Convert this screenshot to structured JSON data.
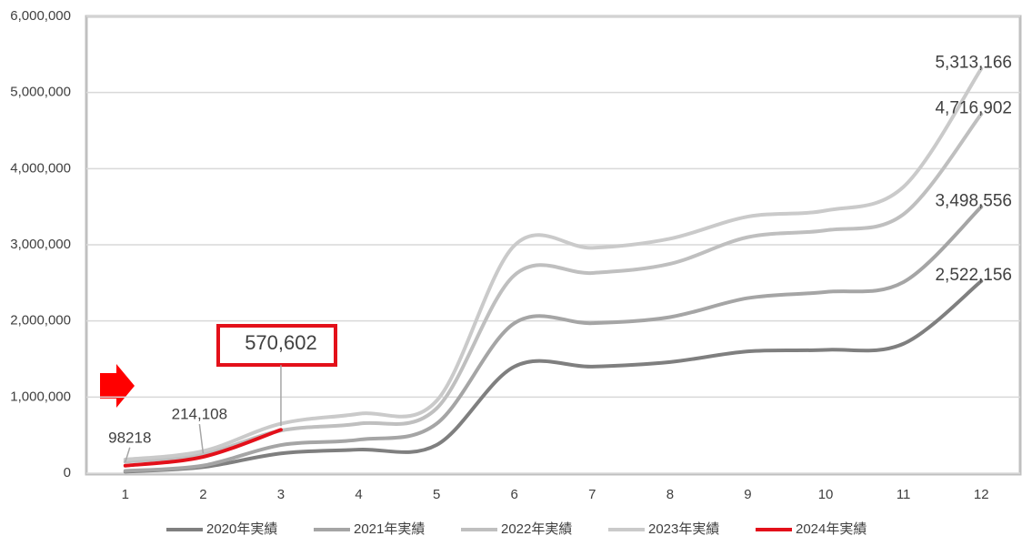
{
  "chart_data": {
    "type": "line",
    "categories": [
      "1",
      "2",
      "3",
      "4",
      "5",
      "6",
      "7",
      "8",
      "9",
      "10",
      "11",
      "12"
    ],
    "series": [
      {
        "name": "2020年実績",
        "color": "#7f7f7f",
        "values": [
          20000,
          80000,
          260000,
          310000,
          370000,
          1400000,
          1400000,
          1460000,
          1600000,
          1620000,
          1700000,
          2522156
        ],
        "value_labels": [
          null,
          null,
          null,
          null,
          null,
          null,
          null,
          null,
          null,
          null,
          null,
          "2,522,156"
        ]
      },
      {
        "name": "2021年実績",
        "color": "#a5a5a5",
        "values": [
          30000,
          100000,
          370000,
          440000,
          650000,
          1970000,
          1970000,
          2050000,
          2300000,
          2380000,
          2510000,
          3498556
        ],
        "value_labels": [
          null,
          null,
          null,
          null,
          null,
          null,
          null,
          null,
          null,
          null,
          null,
          "3,498,556"
        ]
      },
      {
        "name": "2022年実績",
        "color": "#bfbfbf",
        "values": [
          150000,
          250000,
          560000,
          650000,
          850000,
          2600000,
          2630000,
          2750000,
          3100000,
          3190000,
          3400000,
          4716902
        ],
        "value_labels": [
          null,
          null,
          null,
          null,
          null,
          null,
          null,
          null,
          null,
          null,
          null,
          "4,716,902"
        ]
      },
      {
        "name": "2023年実績",
        "color": "#cacaca",
        "values": [
          180000,
          290000,
          650000,
          780000,
          950000,
          2990000,
          2960000,
          3080000,
          3370000,
          3450000,
          3760000,
          5313166
        ],
        "value_labels": [
          null,
          null,
          null,
          null,
          null,
          null,
          null,
          null,
          null,
          null,
          null,
          "5,313,166"
        ]
      },
      {
        "name": "2024年実績",
        "color": "#e3101a",
        "values": [
          98218,
          214108,
          570602,
          null,
          null,
          null,
          null,
          null,
          null,
          null,
          null,
          null
        ],
        "value_labels": [
          "98218",
          "214,108",
          "570,602",
          null,
          null,
          null,
          null,
          null,
          null,
          null,
          null,
          null
        ]
      }
    ],
    "ylim": [
      0,
      6000000
    ],
    "yticks": [
      0,
      {
        "value": 1000000,
        "label": "1,000,000"
      },
      {
        "value": 2000000,
        "label": "2,000,000"
      },
      {
        "value": 3000000,
        "label": "3,000,000"
      },
      {
        "value": 4000000,
        "label": "4,000,000"
      },
      {
        "value": 5000000,
        "label": "5,000,000"
      },
      {
        "value": 6000000,
        "label": "6,000,000"
      }
    ],
    "grid": true,
    "legend": "bottom"
  }
}
